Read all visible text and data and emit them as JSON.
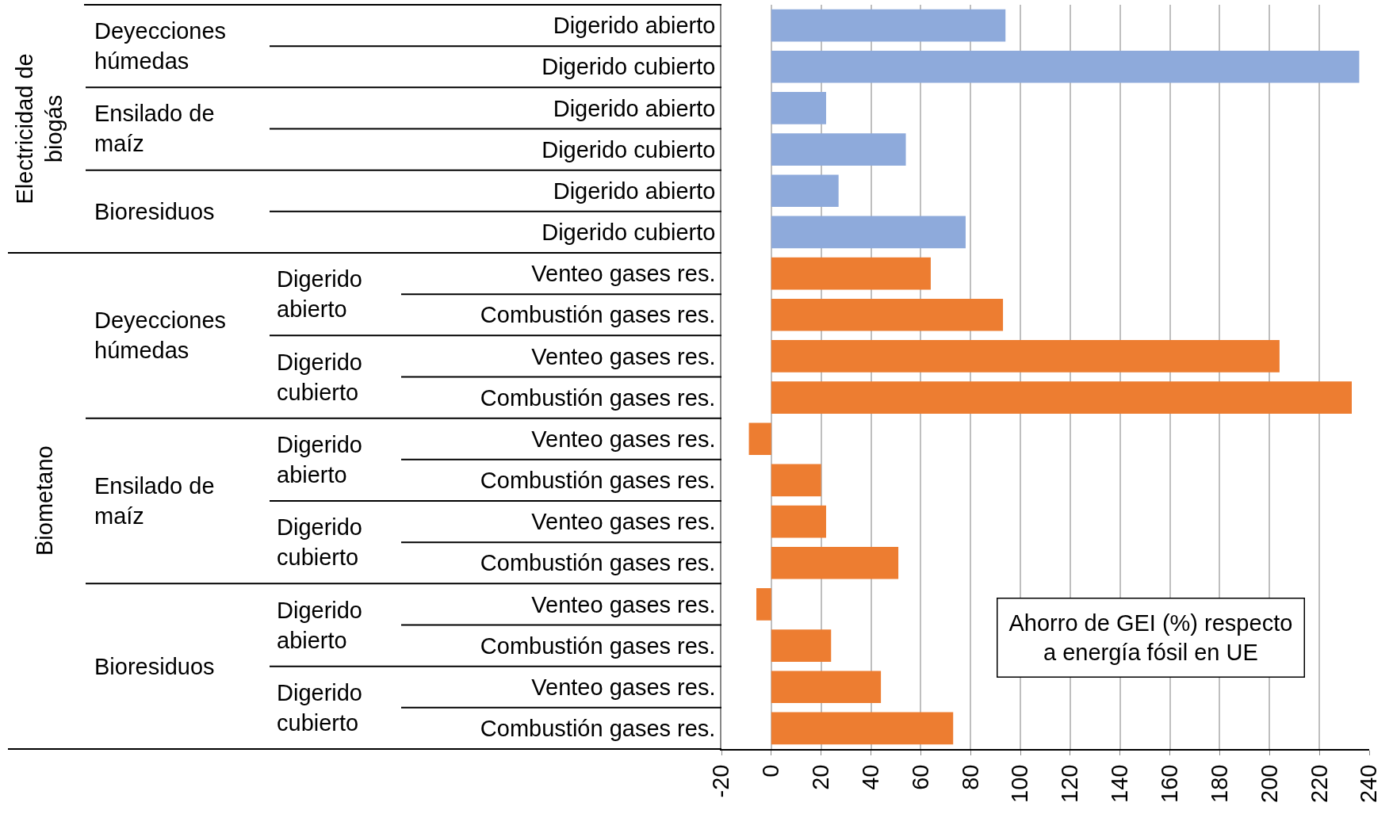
{
  "chart_data": {
    "type": "bar",
    "orientation": "horizontal",
    "categories": [
      "Digerido abierto",
      "Digerido cubierto",
      "Digerido abierto",
      "Digerido cubierto",
      "Digerido abierto",
      "Digerido cubierto",
      "Venteo gases res.",
      "Combustión gases res.",
      "Venteo gases res.",
      "Combustión gases res.",
      "Venteo gases res.",
      "Combustión gases res.",
      "Venteo gases res.",
      "Combustión gases res.",
      "Venteo gases res.",
      "Combustión gases res.",
      "Venteo gases res.",
      "Combustión gases res."
    ],
    "values": [
      94,
      236,
      22,
      54,
      27,
      78,
      64,
      93,
      204,
      233,
      -9,
      20,
      22,
      51,
      -6,
      24,
      44,
      73
    ],
    "colors": [
      "#8eaadb",
      "#8eaadb",
      "#8eaadb",
      "#8eaadb",
      "#8eaadb",
      "#8eaadb",
      "#ed7d31",
      "#ed7d31",
      "#ed7d31",
      "#ed7d31",
      "#ed7d31",
      "#ed7d31",
      "#ed7d31",
      "#ed7d31",
      "#ed7d31",
      "#ed7d31",
      "#ed7d31",
      "#ed7d31"
    ],
    "xlim": [
      -20,
      240
    ],
    "xticks": [
      -20,
      0,
      20,
      40,
      60,
      80,
      100,
      120,
      140,
      160,
      180,
      200,
      220,
      240
    ],
    "grid": "x",
    "annotations": [
      "Electricidad de\nbiogás",
      "Biometano",
      "Deyecciones\nhúmedas",
      "Ensilado de\nmaíz",
      "Bioresiduos",
      "Deyecciones\nhúmedas",
      "Ensilado de\nmaíz",
      "Bioresiduos",
      "Digerido\nabierto",
      "Digerido\ncubierto",
      "Digerido\nabierto",
      "Digerido\ncubierto",
      "Digerido\nabierto",
      "Digerido\ncubierto",
      "Ahorro de GEI (%) respecto\na energía fósil en UE"
    ]
  }
}
